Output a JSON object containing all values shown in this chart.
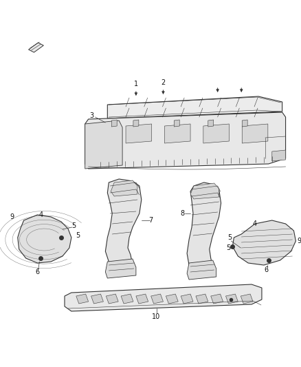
{
  "background_color": "#ffffff",
  "fig_width": 4.38,
  "fig_height": 5.33,
  "dpi": 100,
  "line_color": "#333333",
  "label_color": "#111111",
  "face_color": "#f0f0f0",
  "face_color2": "#e0e0e0",
  "face_color3": "#d0d0d0"
}
